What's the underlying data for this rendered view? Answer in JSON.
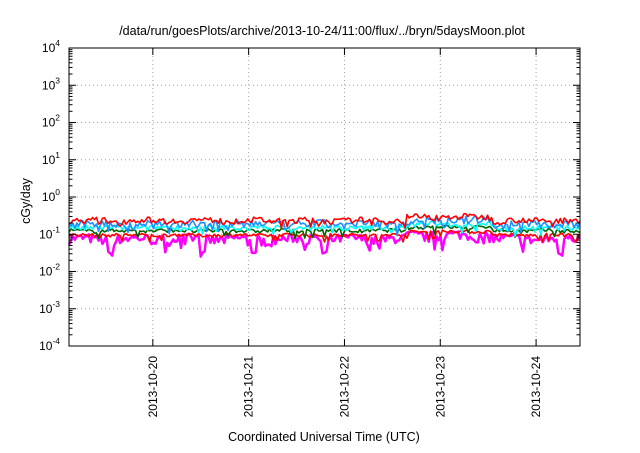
{
  "chart_data": {
    "type": "line",
    "title": "/data/run/goesPlots/archive/2013-10-24/11:00/flux/../bryn/5daysMoon.plot",
    "xlabel": "Coordinated Universal Time (UTC)",
    "ylabel": "cGy/day",
    "yscale": "log",
    "ylim": [
      0.0001,
      10000
    ],
    "y_ticks": [
      {
        "base": "10",
        "exp": "-4"
      },
      {
        "base": "10",
        "exp": "-3"
      },
      {
        "base": "10",
        "exp": "-2"
      },
      {
        "base": "10",
        "exp": "-1"
      },
      {
        "base": "10",
        "exp": "0"
      },
      {
        "base": "10",
        "exp": "1"
      },
      {
        "base": "10",
        "exp": "2"
      },
      {
        "base": "10",
        "exp": "3"
      },
      {
        "base": "10",
        "exp": "4"
      }
    ],
    "xlim": [
      "2013-10-19 03:00",
      "2013-10-24 11:00"
    ],
    "x_ticks": [
      "2013-10-20",
      "2013-10-21",
      "2013-10-22",
      "2013-10-23",
      "2013-10-24"
    ],
    "grid": true,
    "series": [
      {
        "color": "#ff00ff",
        "level": 0.075,
        "noise": 0.3,
        "dips": [
          {
            "at": 0.08,
            "depth": 0.35
          },
          {
            "at": 0.26,
            "depth": 0.4
          },
          {
            "at": 0.36,
            "depth": 0.3
          },
          {
            "at": 0.5,
            "depth": 0.4
          },
          {
            "at": 0.96,
            "depth": 0.25
          }
        ],
        "dip_value": 0.03
      },
      {
        "color": "#ff0000",
        "level": 0.095,
        "noise": 0.1,
        "dips": [],
        "dip_value": 0.08
      },
      {
        "color": "#006400",
        "level": 0.125,
        "noise": 0.12,
        "dips": [],
        "dip_value": 0.1
      },
      {
        "color": "#00ffff",
        "level": 0.15,
        "noise": 0.15,
        "dips": [],
        "dip_value": 0.1
      },
      {
        "color": "#1e90ff",
        "level": 0.19,
        "noise": 0.25,
        "dips": [],
        "dip_value": 0.08
      },
      {
        "color": "#ff0000",
        "level": 0.235,
        "noise": 0.18,
        "dips": [],
        "dip_value": 0.15
      }
    ]
  }
}
